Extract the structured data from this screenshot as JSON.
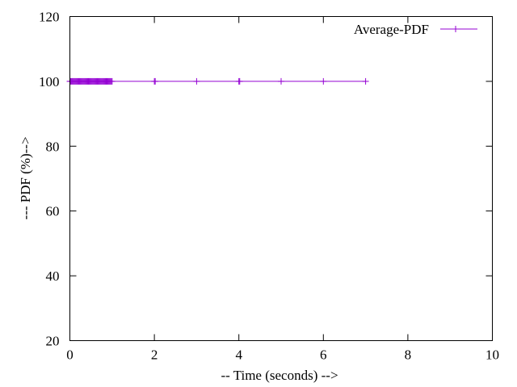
{
  "chart_data": {
    "type": "line",
    "title": "",
    "xlabel": "-- Time (seconds) -->",
    "ylabel": "--- PDF (%)-->",
    "xlim": [
      0,
      10
    ],
    "ylim": [
      20,
      120
    ],
    "x_ticks": [
      0,
      2,
      4,
      6,
      8,
      10
    ],
    "y_ticks": [
      20,
      40,
      60,
      80,
      100,
      120
    ],
    "grid": false,
    "legend_position": "top-right",
    "series": [
      {
        "name": "Average-PDF",
        "color": "#9400d3",
        "marker": "plus",
        "x": [
          0,
          0.02,
          0.04,
          0.06,
          0.08,
          0.1,
          0.12,
          0.14,
          0.16,
          0.18,
          0.2,
          0.22,
          0.24,
          0.26,
          0.28,
          0.3,
          0.32,
          0.34,
          0.36,
          0.38,
          0.4,
          0.42,
          0.44,
          0.46,
          0.48,
          0.5,
          0.52,
          0.54,
          0.56,
          0.58,
          0.6,
          0.62,
          0.64,
          0.66,
          0.68,
          0.7,
          0.72,
          0.74,
          0.76,
          0.78,
          0.8,
          0.82,
          0.84,
          0.86,
          0.88,
          0.9,
          0.92,
          0.94,
          0.96,
          0.98,
          1.0,
          2.0,
          2.02,
          3.0,
          4.0,
          4.02,
          5.0,
          6.0,
          7.0
        ],
        "y": [
          100,
          100,
          100,
          100,
          100,
          100,
          100,
          100,
          100,
          100,
          100,
          100,
          100,
          100,
          100,
          100,
          100,
          100,
          100,
          100,
          100,
          100,
          100,
          100,
          100,
          100,
          100,
          100,
          100,
          100,
          100,
          100,
          100,
          100,
          100,
          100,
          100,
          100,
          100,
          100,
          100,
          100,
          100,
          100,
          100,
          100,
          100,
          100,
          100,
          100,
          100,
          100,
          100,
          100,
          100,
          100,
          100,
          100,
          100
        ]
      }
    ]
  }
}
